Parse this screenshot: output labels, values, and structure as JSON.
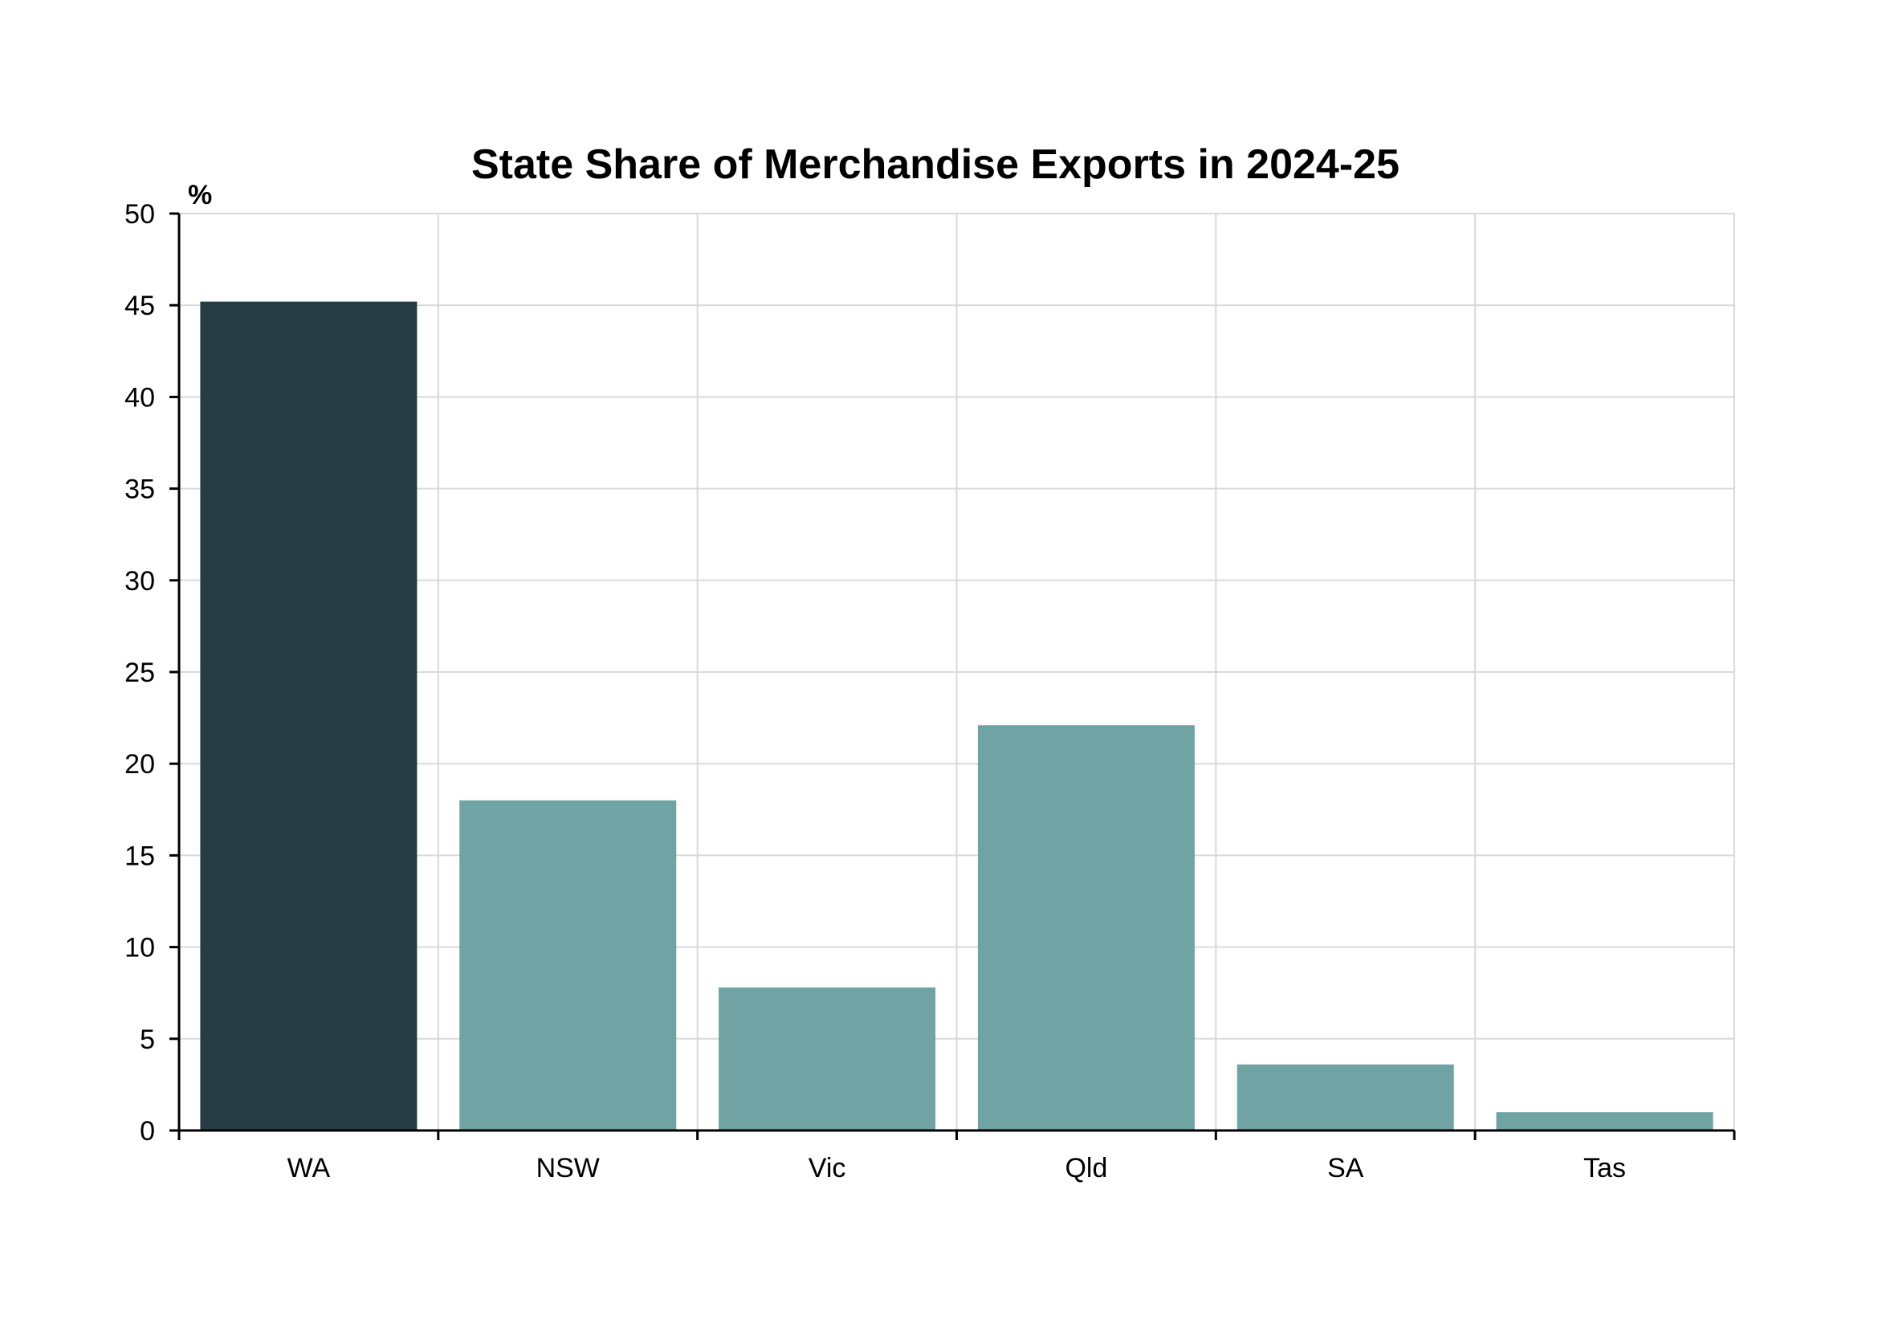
{
  "chart_data": {
    "type": "bar",
    "title": "State Share of Merchandise Exports in 2024-25",
    "unit_label": "%",
    "categories": [
      "WA",
      "NSW",
      "Vic",
      "Qld",
      "SA",
      "Tas"
    ],
    "values": [
      45.2,
      18.0,
      7.8,
      22.1,
      3.6,
      1.0
    ],
    "ylim": [
      0,
      50
    ],
    "yticks": [
      0,
      5,
      10,
      15,
      20,
      25,
      30,
      35,
      40,
      45,
      50
    ],
    "grid": true,
    "colors": {
      "highlight": "#243c42",
      "bar": "#6fa3a4",
      "grid": "#d9d9d9",
      "axis": "#000000"
    },
    "highlight_category": "WA"
  }
}
